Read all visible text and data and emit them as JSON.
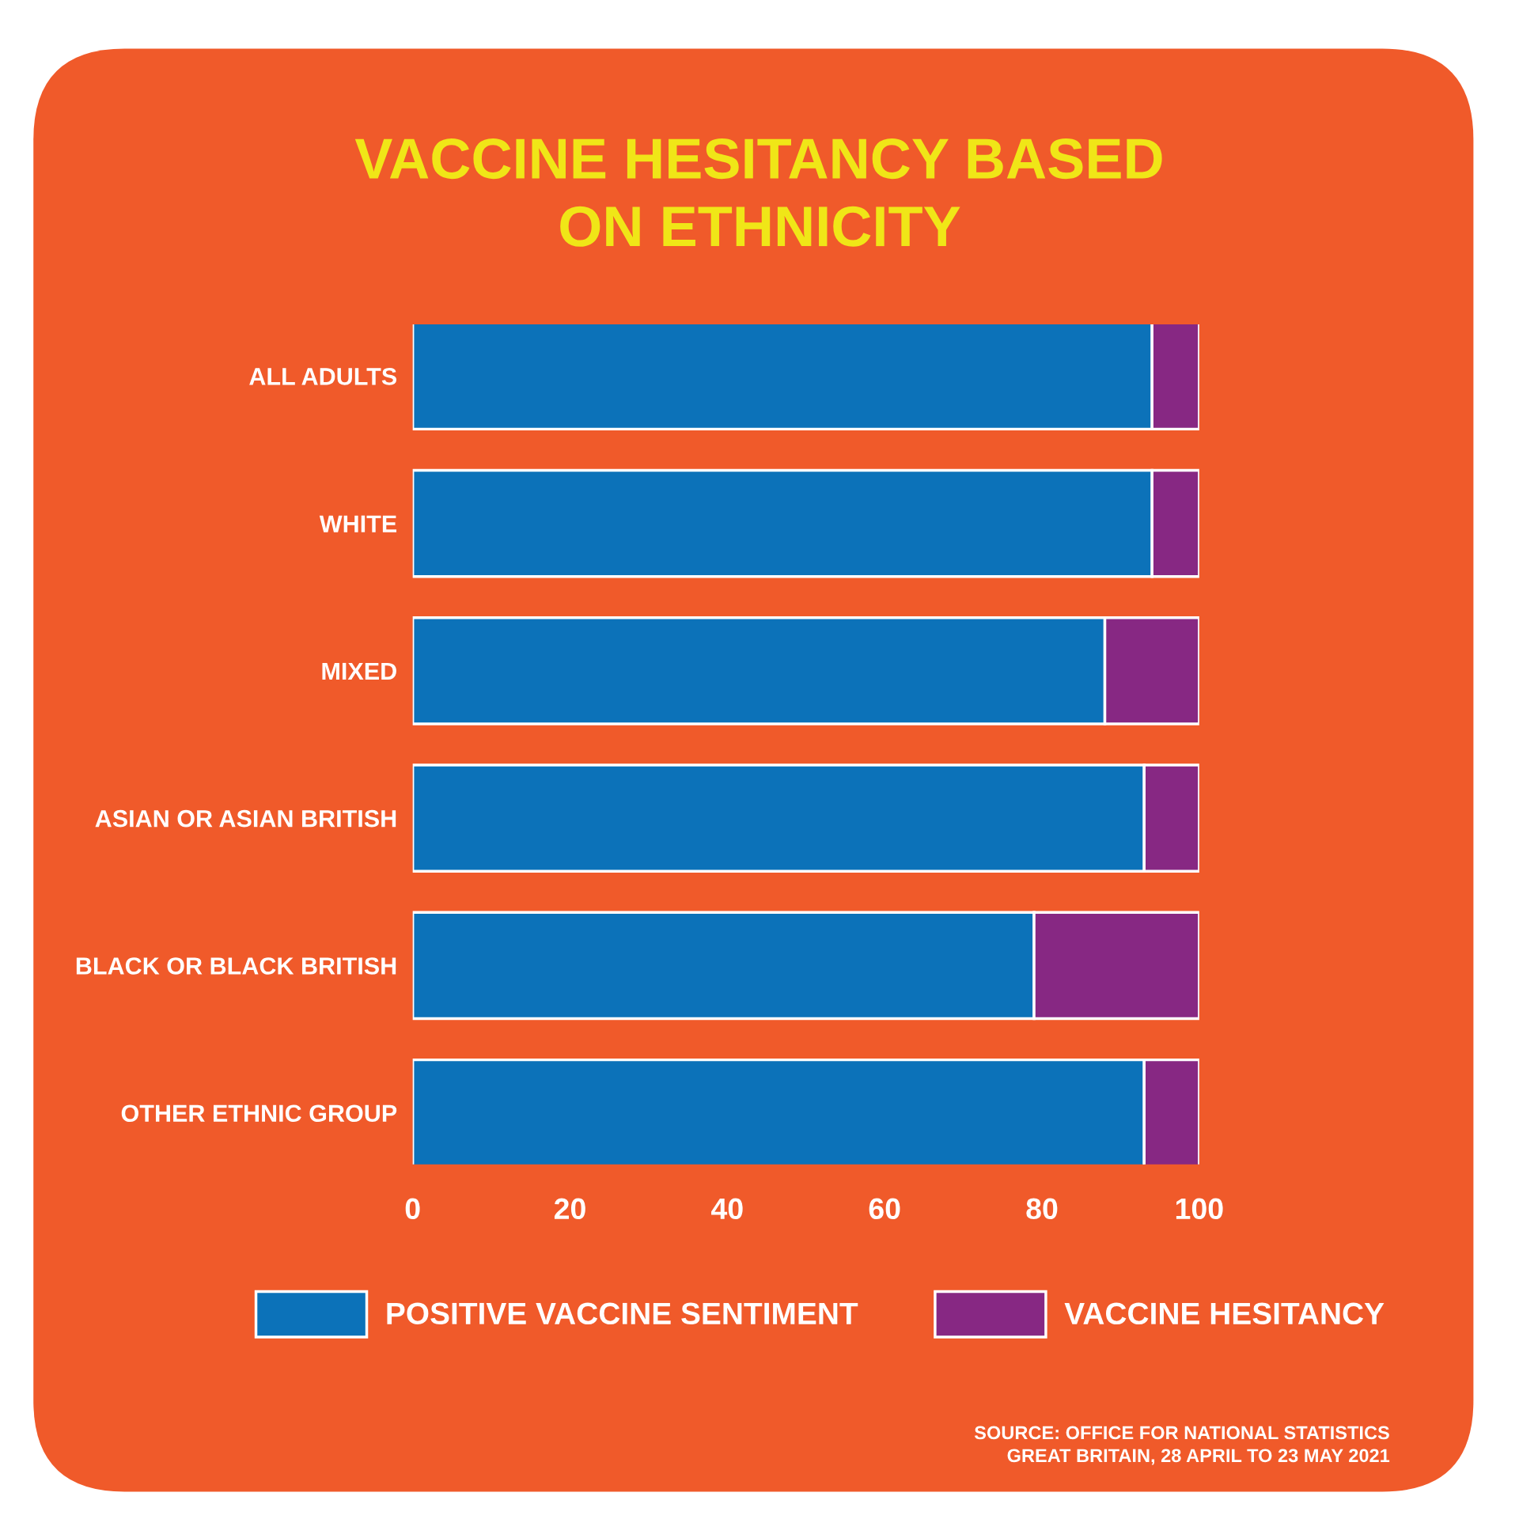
{
  "chart_data": {
    "type": "bar",
    "orientation": "horizontal",
    "stacked": true,
    "title": "VACCINE HESITANCY BASED\nON ETHNICITY",
    "categories": [
      "ALL ADULTS",
      "WHITE",
      "MIXED",
      "ASIAN OR ASIAN BRITISH",
      "BLACK OR BLACK BRITISH",
      "OTHER ETHNIC GROUP"
    ],
    "series": [
      {
        "name": "POSITIVE VACCINE SENTIMENT",
        "color": "#0c72b9",
        "values": [
          94,
          94,
          88,
          93,
          79,
          93
        ]
      },
      {
        "name": "VACCINE HESITANCY",
        "color": "#872883",
        "values": [
          6,
          6,
          12,
          7,
          21,
          7
        ]
      }
    ],
    "xlim": [
      0,
      100
    ],
    "xticks": [
      0,
      20,
      40,
      60,
      80,
      100
    ],
    "grid": false,
    "legend": "bottom",
    "annotations": [
      "SOURCE: OFFICE FOR NATIONAL STATISTICS\nGREAT BRITAIN, 28 APRIL TO 23 MAY 2021"
    ]
  }
}
